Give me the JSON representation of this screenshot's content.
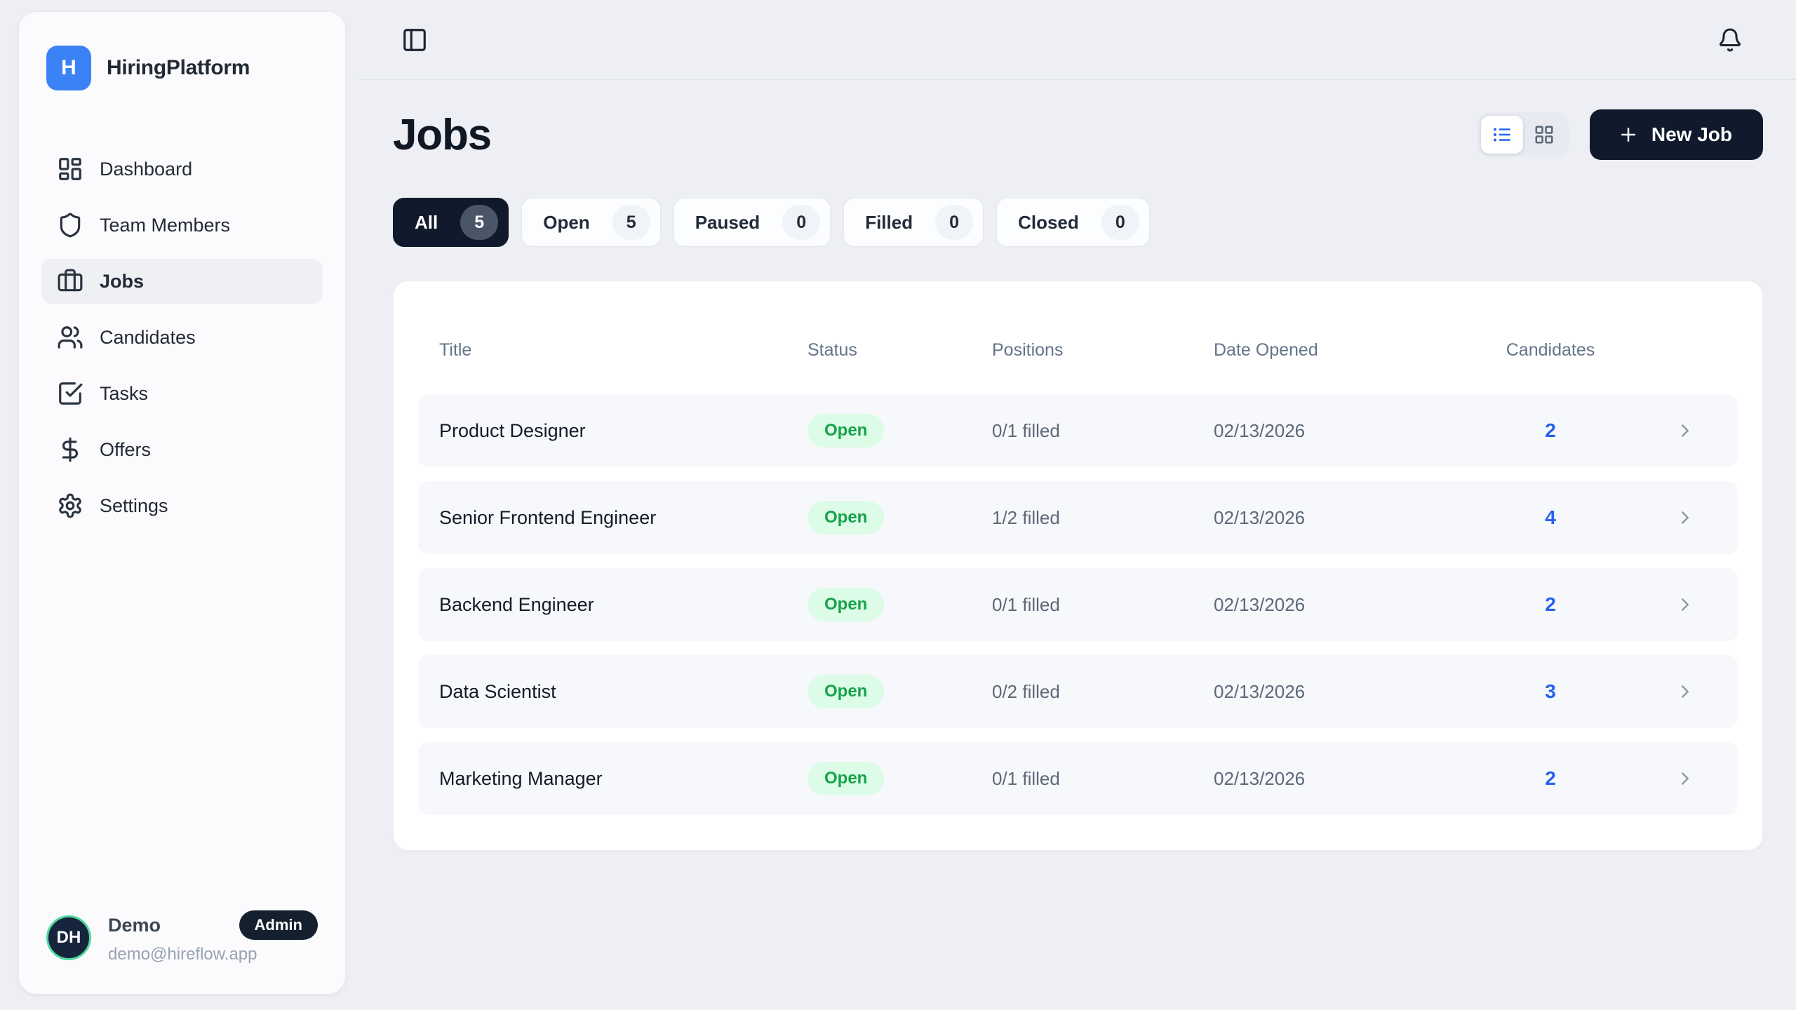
{
  "app": {
    "name": "HiringPlatform",
    "logo_letter": "H"
  },
  "sidebar": {
    "items": [
      {
        "label": "Dashboard",
        "icon": "dashboard",
        "active": false
      },
      {
        "label": "Team Members",
        "icon": "shield",
        "active": false
      },
      {
        "label": "Jobs",
        "icon": "briefcase",
        "active": true
      },
      {
        "label": "Candidates",
        "icon": "users",
        "active": false
      },
      {
        "label": "Tasks",
        "icon": "tasks",
        "active": false
      },
      {
        "label": "Offers",
        "icon": "dollar",
        "active": false
      },
      {
        "label": "Settings",
        "icon": "settings",
        "active": false
      }
    ],
    "user": {
      "initials": "DH",
      "name": "Demo",
      "role_badge": "Admin",
      "email": "demo@hireflow.app"
    }
  },
  "page": {
    "title": "Jobs",
    "new_job_label": "New Job",
    "view_modes": [
      {
        "name": "list",
        "active": true
      },
      {
        "name": "grid",
        "active": false
      }
    ],
    "filters": [
      {
        "label": "All",
        "count": "5",
        "active": true
      },
      {
        "label": "Open",
        "count": "5",
        "active": false
      },
      {
        "label": "Paused",
        "count": "0",
        "active": false
      },
      {
        "label": "Filled",
        "count": "0",
        "active": false
      },
      {
        "label": "Closed",
        "count": "0",
        "active": false
      }
    ],
    "table": {
      "columns": [
        "Title",
        "Status",
        "Positions",
        "Date Opened",
        "Candidates"
      ],
      "rows": [
        {
          "title": "Product Designer",
          "status": "Open",
          "positions": "0/1 filled",
          "date_opened": "02/13/2026",
          "candidates": "2"
        },
        {
          "title": "Senior Frontend Engineer",
          "status": "Open",
          "positions": "1/2 filled",
          "date_opened": "02/13/2026",
          "candidates": "4"
        },
        {
          "title": "Backend Engineer",
          "status": "Open",
          "positions": "0/1 filled",
          "date_opened": "02/13/2026",
          "candidates": "2"
        },
        {
          "title": "Data Scientist",
          "status": "Open",
          "positions": "0/2 filled",
          "date_opened": "02/13/2026",
          "candidates": "3"
        },
        {
          "title": "Marketing Manager",
          "status": "Open",
          "positions": "0/1 filled",
          "date_opened": "02/13/2026",
          "candidates": "2"
        }
      ]
    }
  },
  "colors": {
    "brand_blue": "#3b82f6",
    "accent_blue": "#2563eb",
    "dark_navy": "#111a2c",
    "open_badge_bg": "#dcfce7",
    "open_badge_text": "#16a34a",
    "avatar_ring": "#52d99f",
    "page_background": "#edeff4"
  }
}
